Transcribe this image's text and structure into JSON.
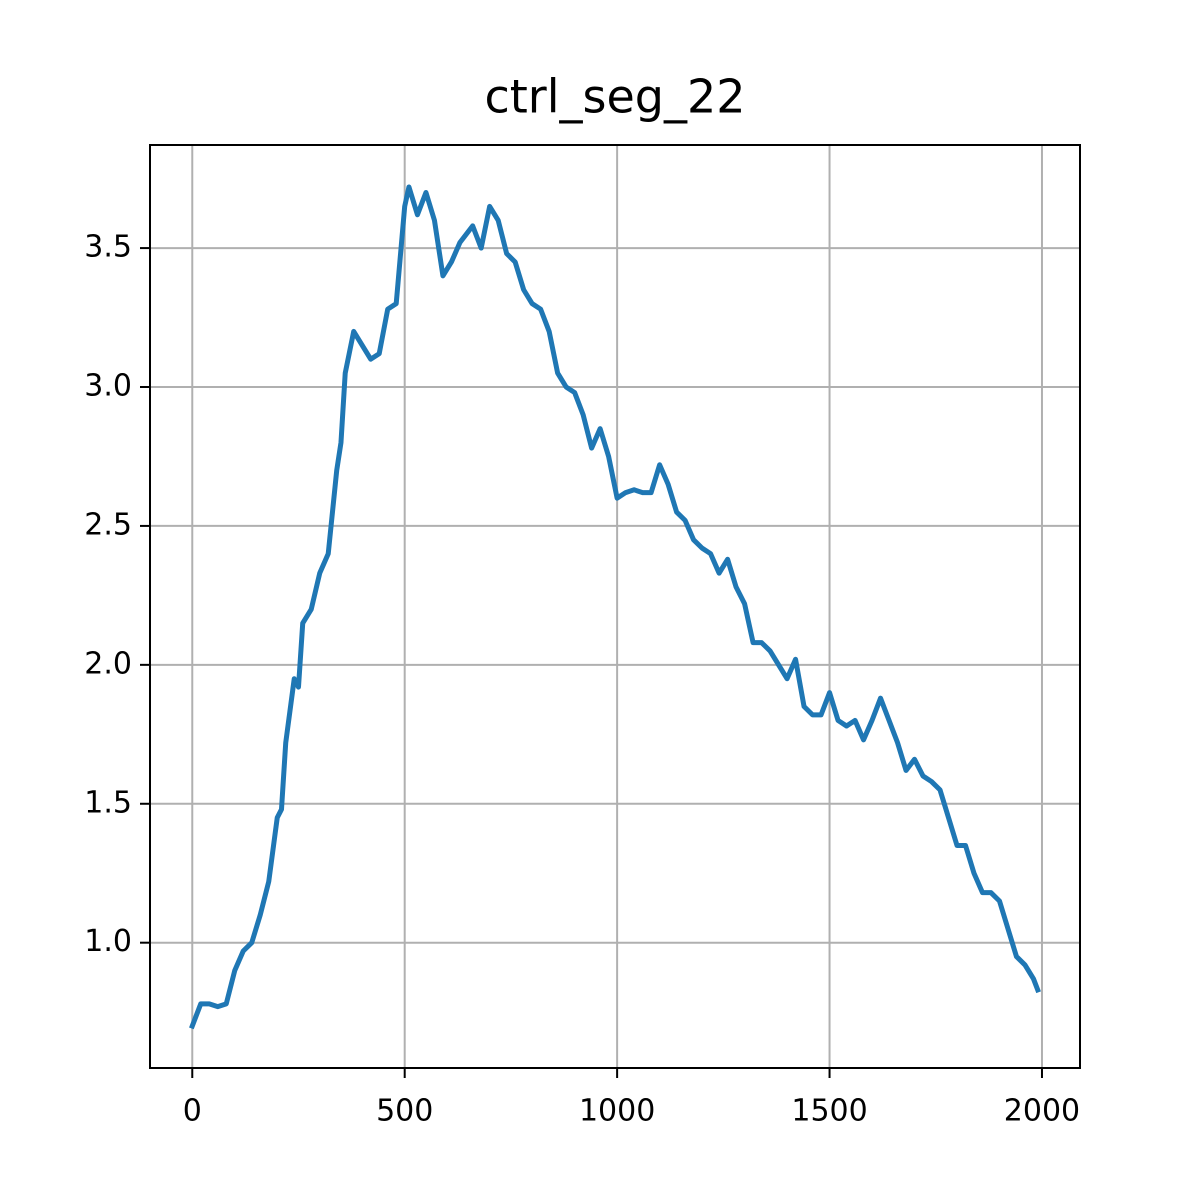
{
  "chart_data": {
    "type": "line",
    "title": "ctrl_seg_22",
    "x": [
      0,
      20,
      40,
      60,
      80,
      100,
      120,
      140,
      160,
      180,
      200,
      210,
      220,
      240,
      250,
      260,
      280,
      300,
      320,
      340,
      350,
      360,
      380,
      400,
      420,
      440,
      460,
      480,
      500,
      510,
      530,
      550,
      570,
      590,
      610,
      630,
      660,
      680,
      700,
      720,
      740,
      760,
      780,
      800,
      820,
      840,
      860,
      880,
      900,
      920,
      940,
      960,
      980,
      1000,
      1020,
      1040,
      1060,
      1080,
      1100,
      1120,
      1140,
      1160,
      1180,
      1200,
      1220,
      1240,
      1260,
      1280,
      1300,
      1320,
      1340,
      1360,
      1380,
      1400,
      1420,
      1440,
      1460,
      1480,
      1500,
      1520,
      1540,
      1560,
      1580,
      1600,
      1620,
      1640,
      1660,
      1680,
      1700,
      1720,
      1740,
      1760,
      1780,
      1800,
      1820,
      1840,
      1860,
      1880,
      1900,
      1920,
      1940,
      1960,
      1980,
      1990
    ],
    "series": [
      {
        "color": "#1f77b4",
        "values": [
          0.7,
          0.78,
          0.78,
          0.77,
          0.78,
          0.9,
          0.97,
          1.0,
          1.1,
          1.22,
          1.45,
          1.48,
          1.72,
          1.95,
          1.92,
          2.15,
          2.2,
          2.33,
          2.4,
          2.7,
          2.8,
          3.05,
          3.2,
          3.15,
          3.1,
          3.12,
          3.28,
          3.3,
          3.65,
          3.72,
          3.62,
          3.7,
          3.6,
          3.4,
          3.45,
          3.52,
          3.58,
          3.5,
          3.65,
          3.6,
          3.48,
          3.45,
          3.35,
          3.3,
          3.28,
          3.2,
          3.05,
          3.0,
          2.98,
          2.9,
          2.78,
          2.85,
          2.75,
          2.6,
          2.62,
          2.63,
          2.62,
          2.62,
          2.72,
          2.65,
          2.55,
          2.52,
          2.45,
          2.42,
          2.4,
          2.33,
          2.38,
          2.28,
          2.22,
          2.08,
          2.08,
          2.05,
          2.0,
          1.95,
          2.02,
          1.85,
          1.82,
          1.82,
          1.9,
          1.8,
          1.78,
          1.8,
          1.73,
          1.8,
          1.88,
          1.8,
          1.72,
          1.62,
          1.66,
          1.6,
          1.58,
          1.55,
          1.45,
          1.35,
          1.35,
          1.25,
          1.18,
          1.18,
          1.15,
          1.05,
          0.95,
          0.92,
          0.87,
          0.83
        ]
      }
    ],
    "xlim": [
      -99.5,
      2089.5
    ],
    "ylim": [
      0.549,
      3.871
    ],
    "xticks": [
      0,
      500,
      1000,
      1500,
      2000
    ],
    "yticks": [
      {
        "value": 1.0,
        "label": "1.0"
      },
      {
        "value": 1.5,
        "label": "1.5"
      },
      {
        "value": 2.0,
        "label": "2.0"
      },
      {
        "value": 2.5,
        "label": "2.5"
      },
      {
        "value": 3.0,
        "label": "3.0"
      },
      {
        "value": 3.5,
        "label": "3.5"
      }
    ],
    "grid": true
  }
}
